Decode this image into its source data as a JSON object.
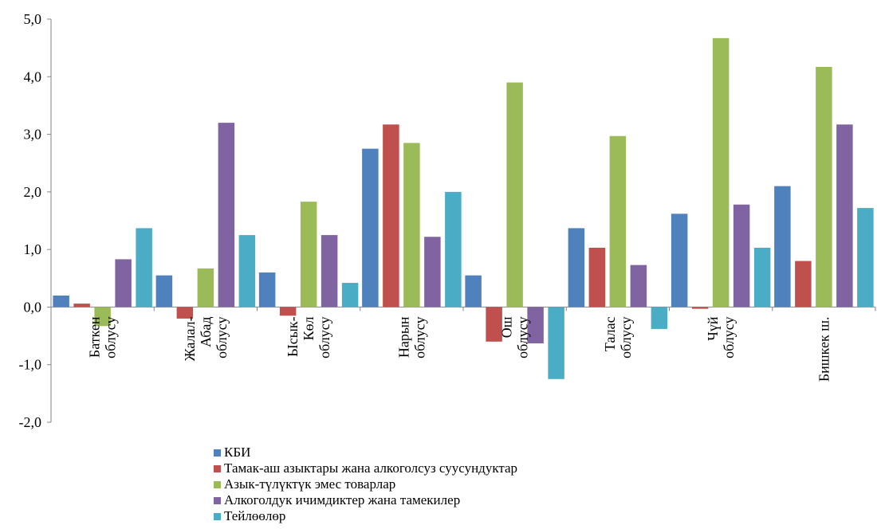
{
  "chart_data": {
    "type": "bar",
    "categories": [
      [
        "Баткен",
        "облусу"
      ],
      [
        "Жалал-",
        "Абад",
        "облусу"
      ],
      [
        "Ысык-",
        "Көл",
        "облусу"
      ],
      [
        "Нарын",
        "облусу"
      ],
      [
        "Ош",
        "облусу"
      ],
      [
        "Талас",
        "облусу"
      ],
      [
        "Чүй",
        "облусу"
      ],
      [
        "Бишкек ш."
      ]
    ],
    "series": [
      {
        "name": "КБИ",
        "color": "#4f81bd",
        "values": [
          0.2,
          0.55,
          0.6,
          2.75,
          0.55,
          1.37,
          1.62,
          2.1
        ]
      },
      {
        "name": "Тамак-аш азыктары жана алкоголсуз суусундуктар",
        "color": "#c0504d",
        "values": [
          0.06,
          -0.2,
          -0.15,
          3.17,
          -0.6,
          1.03,
          -0.03,
          0.8
        ]
      },
      {
        "name": "Азык-түлүктүк эмес товарлар",
        "color": "#9bbb59",
        "values": [
          -0.33,
          0.67,
          1.83,
          2.85,
          3.9,
          2.97,
          4.67,
          4.17
        ]
      },
      {
        "name": "Алкоголдук ичимдиктер жана тамекилер",
        "color": "#8064a2",
        "values": [
          0.83,
          3.2,
          1.25,
          1.22,
          -0.63,
          0.73,
          1.78,
          3.17
        ]
      },
      {
        "name": "Тейлөөлөр",
        "color": "#4bacc6",
        "values": [
          1.37,
          1.25,
          0.42,
          2.0,
          -1.25,
          -0.38,
          1.03,
          1.72
        ]
      }
    ],
    "yticks": [
      "5,0",
      "4,0",
      "3,0",
      "2,0",
      "1,0",
      "0,0",
      "-1,0",
      "-2,0"
    ],
    "ylim": [
      -2,
      5
    ],
    "legend_position": "bottom",
    "grid": false
  }
}
